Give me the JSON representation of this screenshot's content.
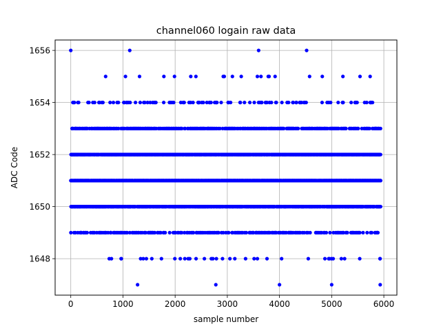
{
  "chart_data": {
    "type": "scatter",
    "title": "channel060 logain raw data",
    "xlabel": "sample number",
    "ylabel": "ADC Code",
    "xlim": [
      -300,
      6250
    ],
    "ylim": [
      1646.6,
      1656.4
    ],
    "xticks": [
      0,
      1000,
      2000,
      3000,
      4000,
      5000,
      6000
    ],
    "yticks": [
      1648,
      1650,
      1652,
      1654,
      1656
    ],
    "grid": true,
    "marker_color": "#0000ff",
    "sample_count": 6000,
    "series": [
      {
        "outliers": [
          {
            "x": 0,
            "y": 1656
          },
          {
            "x": 1130,
            "y": 1656
          },
          {
            "x": 3600,
            "y": 1656
          },
          {
            "x": 4520,
            "y": 1656
          },
          {
            "x": 1280,
            "y": 1647
          },
          {
            "x": 2780,
            "y": 1647
          },
          {
            "x": 4000,
            "y": 1647
          },
          {
            "x": 5000,
            "y": 1647
          },
          {
            "x": 5930,
            "y": 1647
          }
        ],
        "level_densities": [
          {
            "y": 1655,
            "fraction": 0.035
          },
          {
            "y": 1654,
            "fraction": 0.14
          },
          {
            "y": 1653,
            "fraction": 0.5
          },
          {
            "y": 1652,
            "fraction": 0.9
          },
          {
            "y": 1651,
            "fraction": 0.98
          },
          {
            "y": 1650,
            "fraction": 0.75
          },
          {
            "y": 1649,
            "fraction": 0.27
          },
          {
            "y": 1648,
            "fraction": 0.05
          }
        ]
      }
    ]
  }
}
